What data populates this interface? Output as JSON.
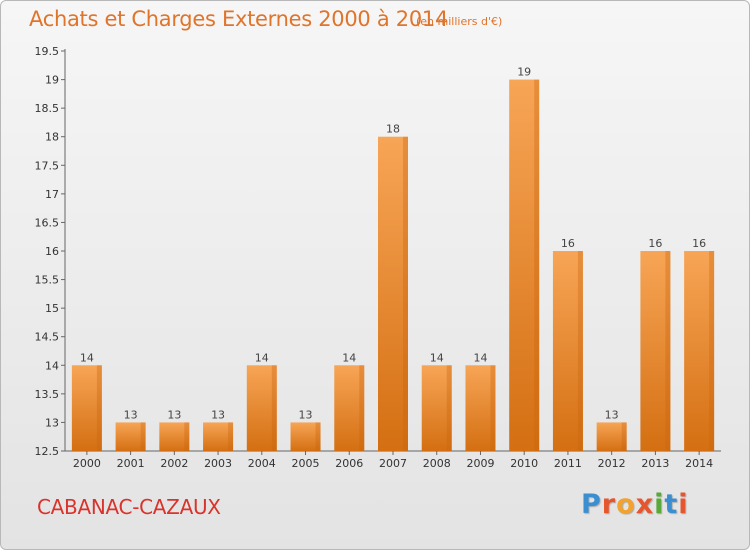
{
  "title": "Achats et Charges Externes 2000 à 2014",
  "unit_note": "(en milliers d'€)",
  "town": "CABANAC-CAZAUX",
  "logo": {
    "text": "Proxiti",
    "letters": [
      "P",
      "r",
      "o",
      "x",
      "i",
      "t",
      "i"
    ]
  },
  "colors": {
    "bar": "#f0922e",
    "bar_dark": "#d46f12",
    "title": "#e0742a",
    "town": "#d9332b",
    "grid": "#cccccc"
  },
  "chart_data": {
    "type": "bar",
    "title": "Achats et Charges Externes 2000 à 2014",
    "categories": [
      "2000",
      "2001",
      "2002",
      "2003",
      "2004",
      "2005",
      "2006",
      "2007",
      "2008",
      "2009",
      "2010",
      "2011",
      "2012",
      "2013",
      "2014"
    ],
    "values": [
      14,
      13,
      13,
      13,
      14,
      13,
      14,
      18,
      14,
      14,
      19,
      16,
      13,
      16,
      16
    ],
    "ylim": [
      12.5,
      19.5
    ],
    "yticks": [
      "12.5",
      "13",
      "13.5",
      "14",
      "14.5",
      "15",
      "15.5",
      "16",
      "16.5",
      "17",
      "17.5",
      "18",
      "18.5",
      "19",
      "19.5"
    ],
    "grid": false,
    "xlabel": "",
    "ylabel": ""
  }
}
